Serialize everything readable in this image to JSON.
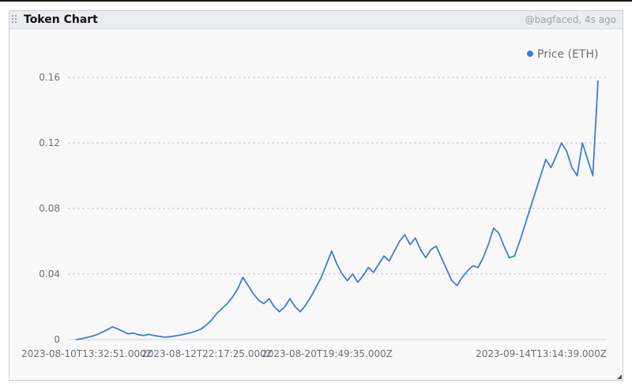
{
  "panel": {
    "title": "Token Chart",
    "meta": "@bagfaced, 4s ago"
  },
  "colors": {
    "series": "#3b7ddd",
    "grid": "#bfc2c7",
    "text": "#6b6f76"
  },
  "chart_data": {
    "type": "line",
    "title": "",
    "xlabel": "",
    "ylabel": "",
    "ylim": [
      0,
      0.17
    ],
    "yticks": [
      0,
      0.04,
      0.08,
      0.12,
      0.16
    ],
    "ytick_labels": [
      "0",
      "0.04",
      "0.08",
      "0.12",
      "0.16"
    ],
    "xtick_labels": [
      {
        "label": "2023-08-10T13:32:51.000Z",
        "x": 0
      },
      {
        "label": "2023-08-12T22:17:25.000Z",
        "x": 23
      },
      {
        "label": "2023-08-20T19:49:35.000Z",
        "x": 46
      },
      {
        "label": "2023-09-14T13:14:39.000Z",
        "x": 87
      }
    ],
    "grid": true,
    "legend_position": "top-right",
    "series": [
      {
        "name": "Price (ETH)",
        "x": [
          0,
          1,
          2,
          3,
          4,
          5,
          6,
          7,
          8,
          9,
          10,
          11,
          12,
          13,
          14,
          15,
          16,
          17,
          18,
          19,
          20,
          21,
          22,
          23,
          24,
          25,
          26,
          27,
          28,
          29,
          30,
          31,
          32,
          33,
          34,
          35,
          36,
          37,
          38,
          39,
          40,
          41,
          42,
          43,
          44,
          45,
          46,
          47,
          48,
          49,
          50,
          51,
          52,
          53,
          54,
          55,
          56,
          57,
          58,
          59,
          60,
          61,
          62,
          63,
          64,
          65,
          66,
          67,
          68,
          69,
          70,
          71,
          72,
          73,
          74,
          75,
          76,
          77,
          78,
          79,
          80,
          81,
          82,
          83,
          84,
          85,
          86,
          87,
          88,
          89,
          90,
          91,
          92,
          93,
          94,
          95,
          96,
          97,
          98,
          99,
          100
        ],
        "values": [
          0,
          0.0005,
          0.0012,
          0.002,
          0.003,
          0.0045,
          0.006,
          0.0078,
          0.0066,
          0.005,
          0.0035,
          0.004,
          0.003,
          0.0025,
          0.0032,
          0.0025,
          0.002,
          0.0015,
          0.0018,
          0.0022,
          0.0028,
          0.0035,
          0.0042,
          0.0052,
          0.0065,
          0.009,
          0.012,
          0.016,
          0.019,
          0.022,
          0.026,
          0.031,
          0.038,
          0.033,
          0.028,
          0.024,
          0.022,
          0.025,
          0.02,
          0.017,
          0.02,
          0.025,
          0.02,
          0.017,
          0.021,
          0.026,
          0.032,
          0.038,
          0.046,
          0.054,
          0.046,
          0.04,
          0.036,
          0.04,
          0.035,
          0.039,
          0.044,
          0.041,
          0.046,
          0.051,
          0.048,
          0.054,
          0.06,
          0.064,
          0.058,
          0.062,
          0.055,
          0.05,
          0.055,
          0.057,
          0.05,
          0.043,
          0.036,
          0.033,
          0.038,
          0.042,
          0.045,
          0.044,
          0.05,
          0.058,
          0.068,
          0.065,
          0.057,
          0.05,
          0.051,
          0.06,
          0.07,
          0.08,
          0.09,
          0.1,
          0.11,
          0.105,
          0.112,
          0.12,
          0.115,
          0.105,
          0.1,
          0.12,
          0.11,
          0.1,
          0.158
        ]
      }
    ]
  }
}
